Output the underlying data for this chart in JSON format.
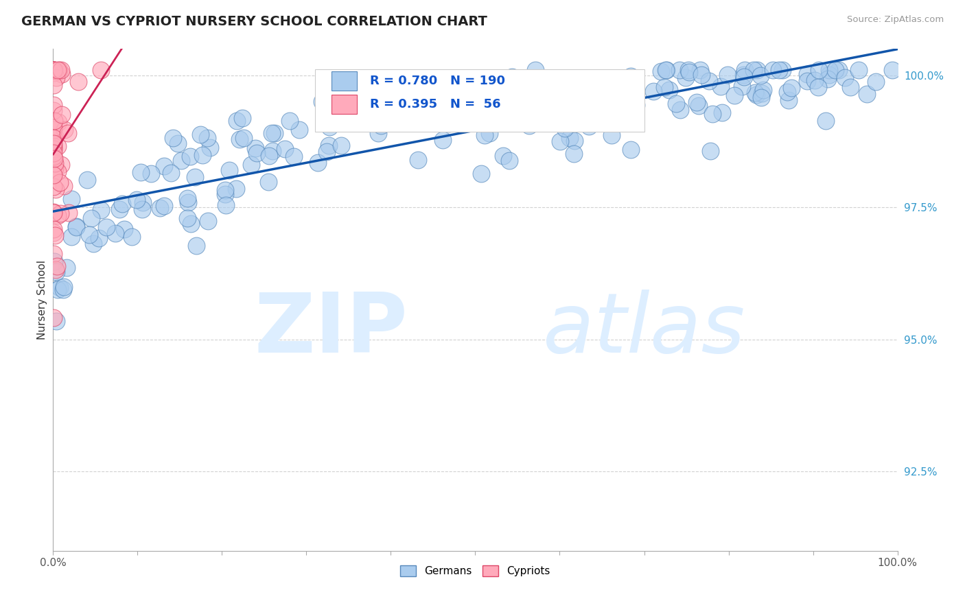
{
  "title": "GERMAN VS CYPRIOT NURSERY SCHOOL CORRELATION CHART",
  "source": "Source: ZipAtlas.com",
  "ylabel": "Nursery School",
  "xlim": [
    0.0,
    1.0
  ],
  "ylim": [
    0.91,
    1.005
  ],
  "yticks": [
    0.925,
    0.95,
    0.975,
    1.0
  ],
  "ytick_labels": [
    "92.5%",
    "95.0%",
    "97.5%",
    "100.0%"
  ],
  "xticks": [
    0.0,
    0.1,
    0.2,
    0.3,
    0.4,
    0.5,
    0.6,
    0.7,
    0.8,
    0.9,
    1.0
  ],
  "xtick_labels": [
    "0.0%",
    "",
    "",
    "",
    "",
    "",
    "",
    "",
    "",
    "",
    "100.0%"
  ],
  "german_R": 0.78,
  "german_N": 190,
  "cypriot_R": 0.395,
  "cypriot_N": 56,
  "german_color": "#aaccee",
  "german_edge_color": "#5588bb",
  "cypriot_color": "#ffaabb",
  "cypriot_edge_color": "#dd4466",
  "trend_color": "#1155aa",
  "cypriot_trend_color": "#cc2255",
  "background_color": "#ffffff",
  "watermark_zip": "ZIP",
  "watermark_atlas": "atlas",
  "watermark_color": "#ddeeff",
  "legend_R_color": "#1155cc",
  "title_color": "#222222",
  "grid_color": "#cccccc",
  "axis_color": "#aaaaaa",
  "ytick_color": "#3399cc",
  "xtick_color": "#555555"
}
